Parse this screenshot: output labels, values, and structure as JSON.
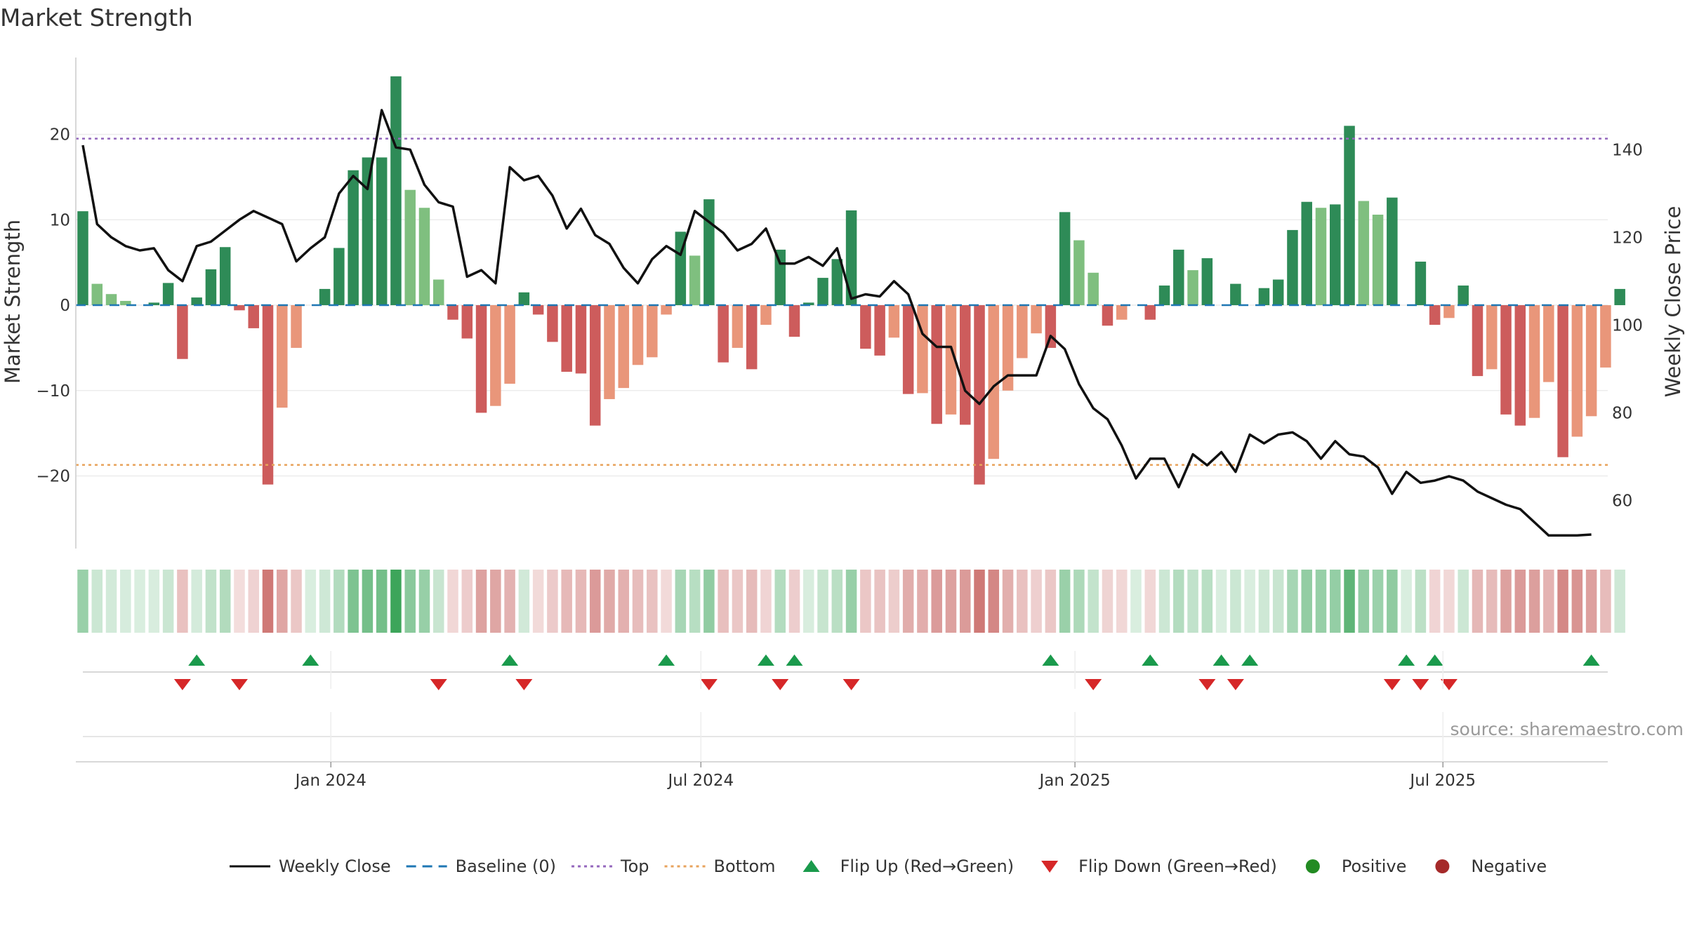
{
  "chart_data": {
    "type": "bar",
    "title": "Market Strength",
    "ylabel": "Market Strength",
    "y2label": "Weekly Close Price",
    "ylim": [
      -28.5,
      29
    ],
    "y2lim": [
      49,
      161
    ],
    "yticks": [
      -20,
      -10,
      0,
      10,
      20
    ],
    "y2ticks": [
      60,
      80,
      100,
      120,
      140
    ],
    "x_start": "2023-09-01",
    "interval_days": 7,
    "xticks": [
      {
        "date": "2024-01-01",
        "label": "Jan 2024"
      },
      {
        "date": "2024-07-01",
        "label": "Jul 2024"
      },
      {
        "date": "2025-01-01",
        "label": "Jan 2025"
      },
      {
        "date": "2025-07-01",
        "label": "Jul 2025"
      }
    ],
    "top_level": 19.5,
    "bottom_level": -18.7,
    "baseline": 0,
    "strength": [
      11,
      2.5,
      1.3,
      0.5,
      0,
      0.3,
      2.6,
      -6.3,
      0.9,
      4.2,
      6.8,
      -0.6,
      -2.7,
      -21,
      -12,
      -5,
      0,
      1.9,
      6.7,
      15.8,
      17.3,
      17.3,
      26.8,
      13.5,
      11.4,
      3,
      -1.7,
      -3.9,
      -12.6,
      -11.8,
      -9.2,
      1.5,
      -1.1,
      -4.3,
      -7.8,
      -8,
      -14.1,
      -11,
      -9.7,
      -7,
      -6.1,
      -1.1,
      8.6,
      5.8,
      12.4,
      -6.7,
      -5,
      -7.5,
      -2.3,
      6.5,
      -3.7,
      0.3,
      3.2,
      5.4,
      11.1,
      -5.1,
      -5.9,
      -3.8,
      -10.4,
      -10.3,
      -13.9,
      -12.8,
      -14,
      -21,
      -18,
      -10,
      -6.2,
      -3.3,
      -5,
      10.9,
      7.6,
      3.8,
      -2.4,
      -1.7,
      0,
      -1.7,
      2.3,
      6.5,
      4.1,
      5.5,
      0,
      2.5,
      0,
      2,
      3,
      8.8,
      12.1,
      11.4,
      11.8,
      21,
      12.2,
      10.6,
      12.6,
      0,
      5.1,
      -2.3,
      -1.5,
      2.3,
      -8.3,
      -7.5,
      -12.8,
      -14.1,
      -13.2,
      -9,
      -17.8,
      -15.4,
      -13,
      -7.3,
      1.9
    ],
    "weekly_close": [
      141,
      123,
      120,
      118,
      117,
      117.5,
      112.5,
      110,
      118,
      119,
      121.5,
      124,
      126,
      124.5,
      123,
      114.5,
      117.5,
      120,
      130,
      134,
      131,
      149,
      140.5,
      140,
      132,
      128,
      127,
      111,
      112.5,
      109.5,
      136,
      133,
      134,
      129.5,
      122,
      126.5,
      120.5,
      118.5,
      113,
      109.5,
      115,
      118,
      116,
      126,
      123.5,
      121,
      117,
      118.5,
      122,
      114,
      114,
      115.5,
      113.5,
      117.5,
      106,
      107,
      106.5,
      110,
      107,
      98,
      95,
      95,
      85,
      82,
      86,
      88.5,
      88.5,
      88.5,
      97.5,
      94.5,
      86.5,
      81,
      78.5,
      72.5,
      65,
      69.5,
      69.5,
      63,
      70.5,
      68,
      71,
      66.5,
      75,
      73,
      75,
      75.5,
      73.5,
      69.5,
      73.5,
      70.5,
      70,
      67.5,
      61.5,
      66.5,
      64,
      64.5,
      65.5,
      64.5,
      62,
      60.5,
      59,
      58,
      55,
      52,
      52,
      52,
      52.2
    ],
    "flip_up_weeks": [
      8,
      16,
      30,
      41,
      48,
      50,
      68,
      75,
      80,
      82,
      93,
      95,
      106
    ],
    "flip_down_weeks": [
      7,
      11,
      25,
      31,
      44,
      49,
      54,
      71,
      79,
      81,
      92,
      94,
      96
    ],
    "series": [
      {
        "name": "Weekly Close",
        "color": "#111111",
        "style": "solid"
      },
      {
        "name": "Baseline (0)",
        "color": "#1f77b4",
        "style": "dashed"
      },
      {
        "name": "Top",
        "color": "#9467bd",
        "style": "dotted"
      },
      {
        "name": "Bottom",
        "color": "#e8a35c",
        "style": "dotted"
      },
      {
        "name": "Flip Up (Red→Green)",
        "color": "#1a9a4c",
        "style": "triangle-up"
      },
      {
        "name": "Flip Down (Green→Red)",
        "color": "#d62728",
        "style": "triangle-down"
      },
      {
        "name": "Positive",
        "color": "#228b22",
        "style": "circle"
      },
      {
        "name": "Negative",
        "color": "#a52a2a",
        "style": "circle"
      }
    ],
    "legend_position": "bottom"
  },
  "source_text": "source: sharemaestro.com"
}
